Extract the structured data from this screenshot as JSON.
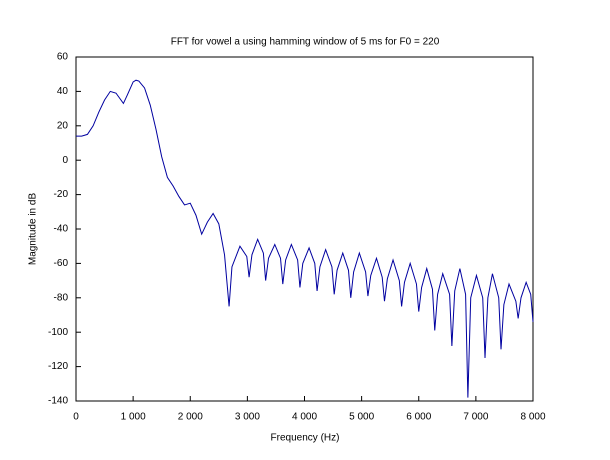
{
  "chart_data": {
    "type": "line",
    "title": "FFT for vowel a using hamming window of 5 ms for F0 = 220",
    "x_label": "Frequency (Hz)",
    "y_label": "Magnitude in dB",
    "color": "#0000a0",
    "xlim": [
      0,
      8000
    ],
    "ylim": [
      -140,
      60
    ],
    "xticks": [
      0,
      {
        "value": 1000,
        "label": "1 000"
      },
      {
        "value": 2000,
        "label": "2 000"
      },
      {
        "value": 3000,
        "label": "3 000"
      },
      {
        "value": 4000,
        "label": "4 000"
      },
      {
        "value": 5000,
        "label": "5 000"
      },
      {
        "value": 6000,
        "label": "6 000"
      },
      {
        "value": 7000,
        "label": "7 000"
      },
      {
        "value": 8000,
        "label": "8 000"
      }
    ],
    "yticks": [
      -140,
      -120,
      -100,
      -80,
      -60,
      -40,
      -20,
      0,
      20,
      40,
      60
    ],
    "x": [
      0,
      100,
      200,
      300,
      400,
      500,
      600,
      700,
      830,
      900,
      1000,
      1050,
      1100,
      1200,
      1300,
      1400,
      1500,
      1600,
      1700,
      1800,
      1900,
      2000,
      2100,
      2200,
      2300,
      2400,
      2500,
      2600,
      2680,
      2730,
      2870,
      2990,
      3030,
      3080,
      3180,
      3280,
      3320,
      3370,
      3480,
      3580,
      3620,
      3670,
      3770,
      3880,
      3920,
      3970,
      4080,
      4180,
      4220,
      4270,
      4370,
      4480,
      4520,
      4570,
      4670,
      4770,
      4810,
      4860,
      4960,
      5070,
      5110,
      5160,
      5260,
      5360,
      5400,
      5450,
      5550,
      5660,
      5700,
      5750,
      5850,
      5960,
      6000,
      6050,
      6140,
      6240,
      6280,
      6330,
      6420,
      6540,
      6580,
      6630,
      6720,
      6820,
      6860,
      6910,
      7010,
      7120,
      7160,
      7210,
      7290,
      7400,
      7440,
      7490,
      7580,
      7700,
      7740,
      7790,
      7880,
      7960,
      8000
    ],
    "values": [
      14,
      14,
      15,
      20,
      28,
      35,
      40,
      39,
      33,
      38,
      45.5,
      46.5,
      46,
      42,
      32,
      18,
      2,
      -10,
      -15,
      -21,
      -26,
      -25,
      -32,
      -43,
      -36,
      -31,
      -37,
      -55,
      -85,
      -62,
      -50,
      -56,
      -68,
      -55,
      -46,
      -54,
      -70,
      -57,
      -49,
      -57,
      -72,
      -58,
      -49,
      -58,
      -74,
      -60,
      -51,
      -60,
      -76,
      -62,
      -52,
      -62,
      -78,
      -64,
      -54,
      -64,
      -80,
      -65,
      -54,
      -65,
      -79,
      -67,
      -57,
      -68,
      -82,
      -69,
      -58,
      -70,
      -85,
      -71,
      -60,
      -72,
      -88,
      -74,
      -63,
      -75,
      -99,
      -78,
      -66,
      -78,
      -108,
      -76,
      -63,
      -78,
      -138,
      -80,
      -67,
      -80,
      -115,
      -80,
      -66,
      -80,
      -110,
      -84,
      -72,
      -82,
      -92,
      -80,
      -71,
      -78,
      -94
    ]
  }
}
